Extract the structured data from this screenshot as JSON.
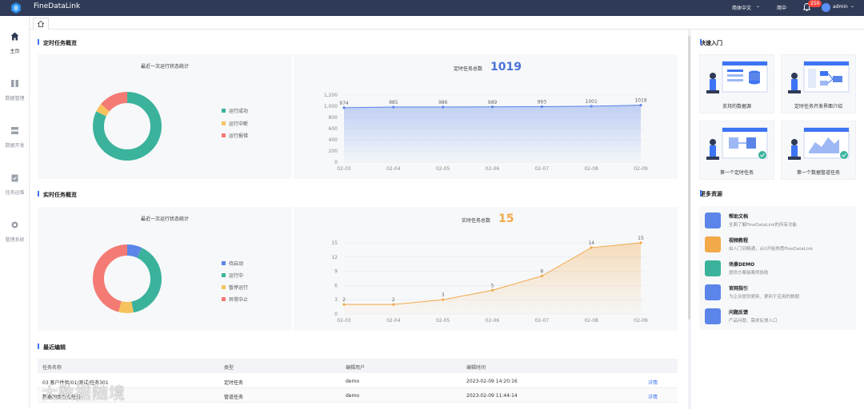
{
  "app": {
    "title": "FineDataLink"
  },
  "topbar": {
    "language": "简体中文",
    "simplified": "简中",
    "notifications": "250",
    "user": "admin"
  },
  "sidebar": {
    "items": [
      {
        "label": "主页"
      },
      {
        "label": "数据管理"
      },
      {
        "label": "数据开发"
      },
      {
        "label": "任务运维"
      },
      {
        "label": "管理系统"
      }
    ]
  },
  "scheduled": {
    "section_title": "定时任务概览",
    "donut_title": "最近一次运行状态统计",
    "legend": [
      {
        "label": "运行成功",
        "color": "#3bb39c",
        "value": 0.82
      },
      {
        "label": "运行中断",
        "color": "#f7c35f",
        "value": 0.04
      },
      {
        "label": "运行报错",
        "color": "#f47a74",
        "value": 0.14
      }
    ],
    "total_label": "定时任务总数",
    "total_value": "1019"
  },
  "realtime": {
    "section_title": "实时任务概览",
    "donut_title": "最近一次运行状态统计",
    "legend": [
      {
        "label": "待启动",
        "color": "#5b85e8",
        "value": 0.07
      },
      {
        "label": "运行中",
        "color": "#3bb39c",
        "value": 0.4
      },
      {
        "label": "暂停运行",
        "color": "#f7c35f",
        "value": 0.07
      },
      {
        "label": "异常中止",
        "color": "#f47a74",
        "value": 0.46
      }
    ],
    "total_label": "实时任务总数",
    "total_value": "15"
  },
  "chart_data": [
    {
      "type": "area",
      "title": "定时任务总数",
      "categories": [
        "02-03",
        "02-04",
        "02-05",
        "02-06",
        "02-07",
        "02-08",
        "02-09"
      ],
      "values": [
        974,
        985,
        986,
        989,
        993,
        1001,
        1019
      ],
      "ylim": [
        0,
        1200
      ],
      "yticks": [
        "0",
        "200",
        "400",
        "600",
        "800",
        "1,000",
        "1,200"
      ],
      "yticks_values": [
        0,
        200,
        400,
        600,
        800,
        1000,
        1200
      ],
      "color": "#5b85e8",
      "grid": true
    },
    {
      "type": "area",
      "title": "实时任务总数",
      "categories": [
        "02-03",
        "02-04",
        "02-05",
        "02-06",
        "02-07",
        "02-08",
        "02-09"
      ],
      "values": [
        2,
        2,
        3,
        5,
        8,
        14,
        15
      ],
      "ylim": [
        0,
        15
      ],
      "yticks": [
        "0",
        "3",
        "6",
        "9",
        "12",
        "15"
      ],
      "yticks_values": [
        0,
        3,
        6,
        9,
        12,
        15
      ],
      "color": "#f2a94a",
      "grid": true
    }
  ],
  "recent": {
    "section_title": "最近编辑",
    "headers": [
      "任务名称",
      "类型",
      "编辑用户",
      "编辑时间"
    ],
    "rows": [
      {
        "name": "03 客户件验/01/测试/任务301",
        "type": "定时任务",
        "user": "demo",
        "time": "2023-02-09 14:20:16",
        "action": "详情"
      },
      {
        "name": "数据同步管道任务",
        "type": "管道任务",
        "user": "demo",
        "time": "2023-02-09 11:44:14",
        "action": "详情"
      }
    ]
  },
  "quick": {
    "title": "快速入门",
    "cards": [
      {
        "label": "支持的数据源"
      },
      {
        "label": "定时任务开发界面介绍"
      },
      {
        "label": "第一个定时任务"
      },
      {
        "label": "第一个数据管道任务"
      }
    ]
  },
  "resources": {
    "title": "更多资源",
    "items": [
      {
        "title": "帮助文档",
        "desc": "全面了解FineDataLink的所有功能",
        "color": "#5b85e8"
      },
      {
        "title": "视频教程",
        "desc": "由入门到精通，从0开始熟悉FineDataLink",
        "color": "#f2a94a"
      },
      {
        "title": "场景DEMO",
        "desc": "提供方案级案例协助",
        "color": "#3bb39c"
      },
      {
        "title": "官网指引",
        "desc": "为企业提供更新、更利于应用的数据",
        "color": "#5b85e8"
      },
      {
        "title": "问题反馈",
        "desc": "产品问题、需求反馈入口",
        "color": "#5b85e8"
      }
    ]
  },
  "watermark": {
    "text": "大数据随境"
  }
}
